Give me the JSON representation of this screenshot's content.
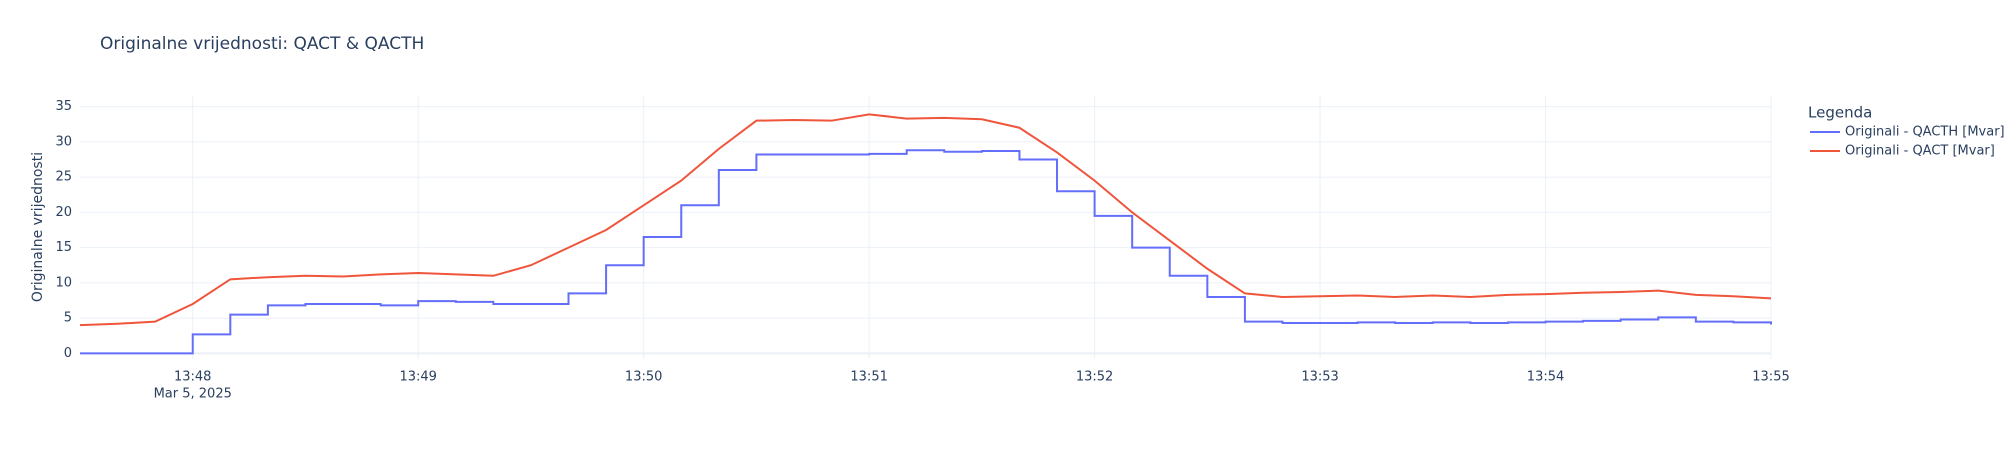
{
  "chart_data": {
    "type": "line",
    "title": "Originalne vrijednosti: QACT & QACTH",
    "y_label": "Originalne vrijednosti",
    "legend_title": "Legenda",
    "legend_position": "right",
    "grid": true,
    "x": [
      "2025-03-05 13:47:30",
      "2025-03-05 13:47:40",
      "2025-03-05 13:47:50",
      "2025-03-05 13:48:00",
      "2025-03-05 13:48:10",
      "2025-03-05 13:48:20",
      "2025-03-05 13:48:30",
      "2025-03-05 13:48:40",
      "2025-03-05 13:48:50",
      "2025-03-05 13:49:00",
      "2025-03-05 13:49:10",
      "2025-03-05 13:49:20",
      "2025-03-05 13:49:30",
      "2025-03-05 13:49:40",
      "2025-03-05 13:49:50",
      "2025-03-05 13:50:00",
      "2025-03-05 13:50:10",
      "2025-03-05 13:50:20",
      "2025-03-05 13:50:30",
      "2025-03-05 13:50:40",
      "2025-03-05 13:50:50",
      "2025-03-05 13:51:00",
      "2025-03-05 13:51:10",
      "2025-03-05 13:51:20",
      "2025-03-05 13:51:30",
      "2025-03-05 13:51:40",
      "2025-03-05 13:51:50",
      "2025-03-05 13:52:00",
      "2025-03-05 13:52:10",
      "2025-03-05 13:52:20",
      "2025-03-05 13:52:30",
      "2025-03-05 13:52:40",
      "2025-03-05 13:52:50",
      "2025-03-05 13:53:00",
      "2025-03-05 13:53:10",
      "2025-03-05 13:53:20",
      "2025-03-05 13:53:30",
      "2025-03-05 13:53:40",
      "2025-03-05 13:53:50",
      "2025-03-05 13:54:00",
      "2025-03-05 13:54:10",
      "2025-03-05 13:54:20",
      "2025-03-05 13:54:30",
      "2025-03-05 13:54:40",
      "2025-03-05 13:54:50",
      "2025-03-05 13:55:00"
    ],
    "series": [
      {
        "name": "Originali - QACTH [Mvar]",
        "color": "#636efa",
        "line_shape": "hv",
        "values": [
          0,
          0,
          0,
          2.7,
          5.5,
          6.8,
          7.0,
          7.0,
          6.8,
          7.4,
          7.3,
          7.0,
          7.0,
          8.5,
          12.5,
          16.5,
          21,
          26,
          28.2,
          28.2,
          28.2,
          28.3,
          28.8,
          28.6,
          28.7,
          27.5,
          23,
          19.5,
          15,
          11,
          8,
          4.5,
          4.3,
          4.3,
          4.4,
          4.3,
          4.4,
          4.3,
          4.4,
          4.5,
          4.6,
          4.8,
          5.1,
          4.5,
          4.4,
          4.1
        ]
      },
      {
        "name": "Originali - QACT [Mvar]",
        "color": "#EF553B",
        "line_shape": "linear",
        "values": [
          4.0,
          4.2,
          4.5,
          7.0,
          10.5,
          10.8,
          11.0,
          10.9,
          11.2,
          11.4,
          11.2,
          11.0,
          12.5,
          15.0,
          17.5,
          21.0,
          24.5,
          29.0,
          33.0,
          33.1,
          33.0,
          33.9,
          33.3,
          33.4,
          33.2,
          32.0,
          28.5,
          24.5,
          20.0,
          16.0,
          12.0,
          8.5,
          8.0,
          8.1,
          8.2,
          8.0,
          8.2,
          8.0,
          8.3,
          8.4,
          8.6,
          8.7,
          8.9,
          8.3,
          8.1,
          7.8
        ]
      }
    ],
    "xlim": [
      "2025-03-05 13:47:30",
      "2025-03-05 13:55:00"
    ],
    "xticks": [
      {
        "value": "2025-03-05 13:48:00",
        "label": "13:48"
      },
      {
        "value": "2025-03-05 13:49:00",
        "label": "13:49"
      },
      {
        "value": "2025-03-05 13:50:00",
        "label": "13:50"
      },
      {
        "value": "2025-03-05 13:51:00",
        "label": "13:51"
      },
      {
        "value": "2025-03-05 13:52:00",
        "label": "13:52"
      },
      {
        "value": "2025-03-05 13:53:00",
        "label": "13:53"
      },
      {
        "value": "2025-03-05 13:54:00",
        "label": "13:54"
      },
      {
        "value": "2025-03-05 13:55:00",
        "label": "13:55"
      }
    ],
    "xtick_date_label": "Mar 5, 2025",
    "ylim": [
      -0.8,
      36.5
    ],
    "yticks": [
      0,
      5,
      10,
      15,
      20,
      25,
      30,
      35
    ]
  }
}
